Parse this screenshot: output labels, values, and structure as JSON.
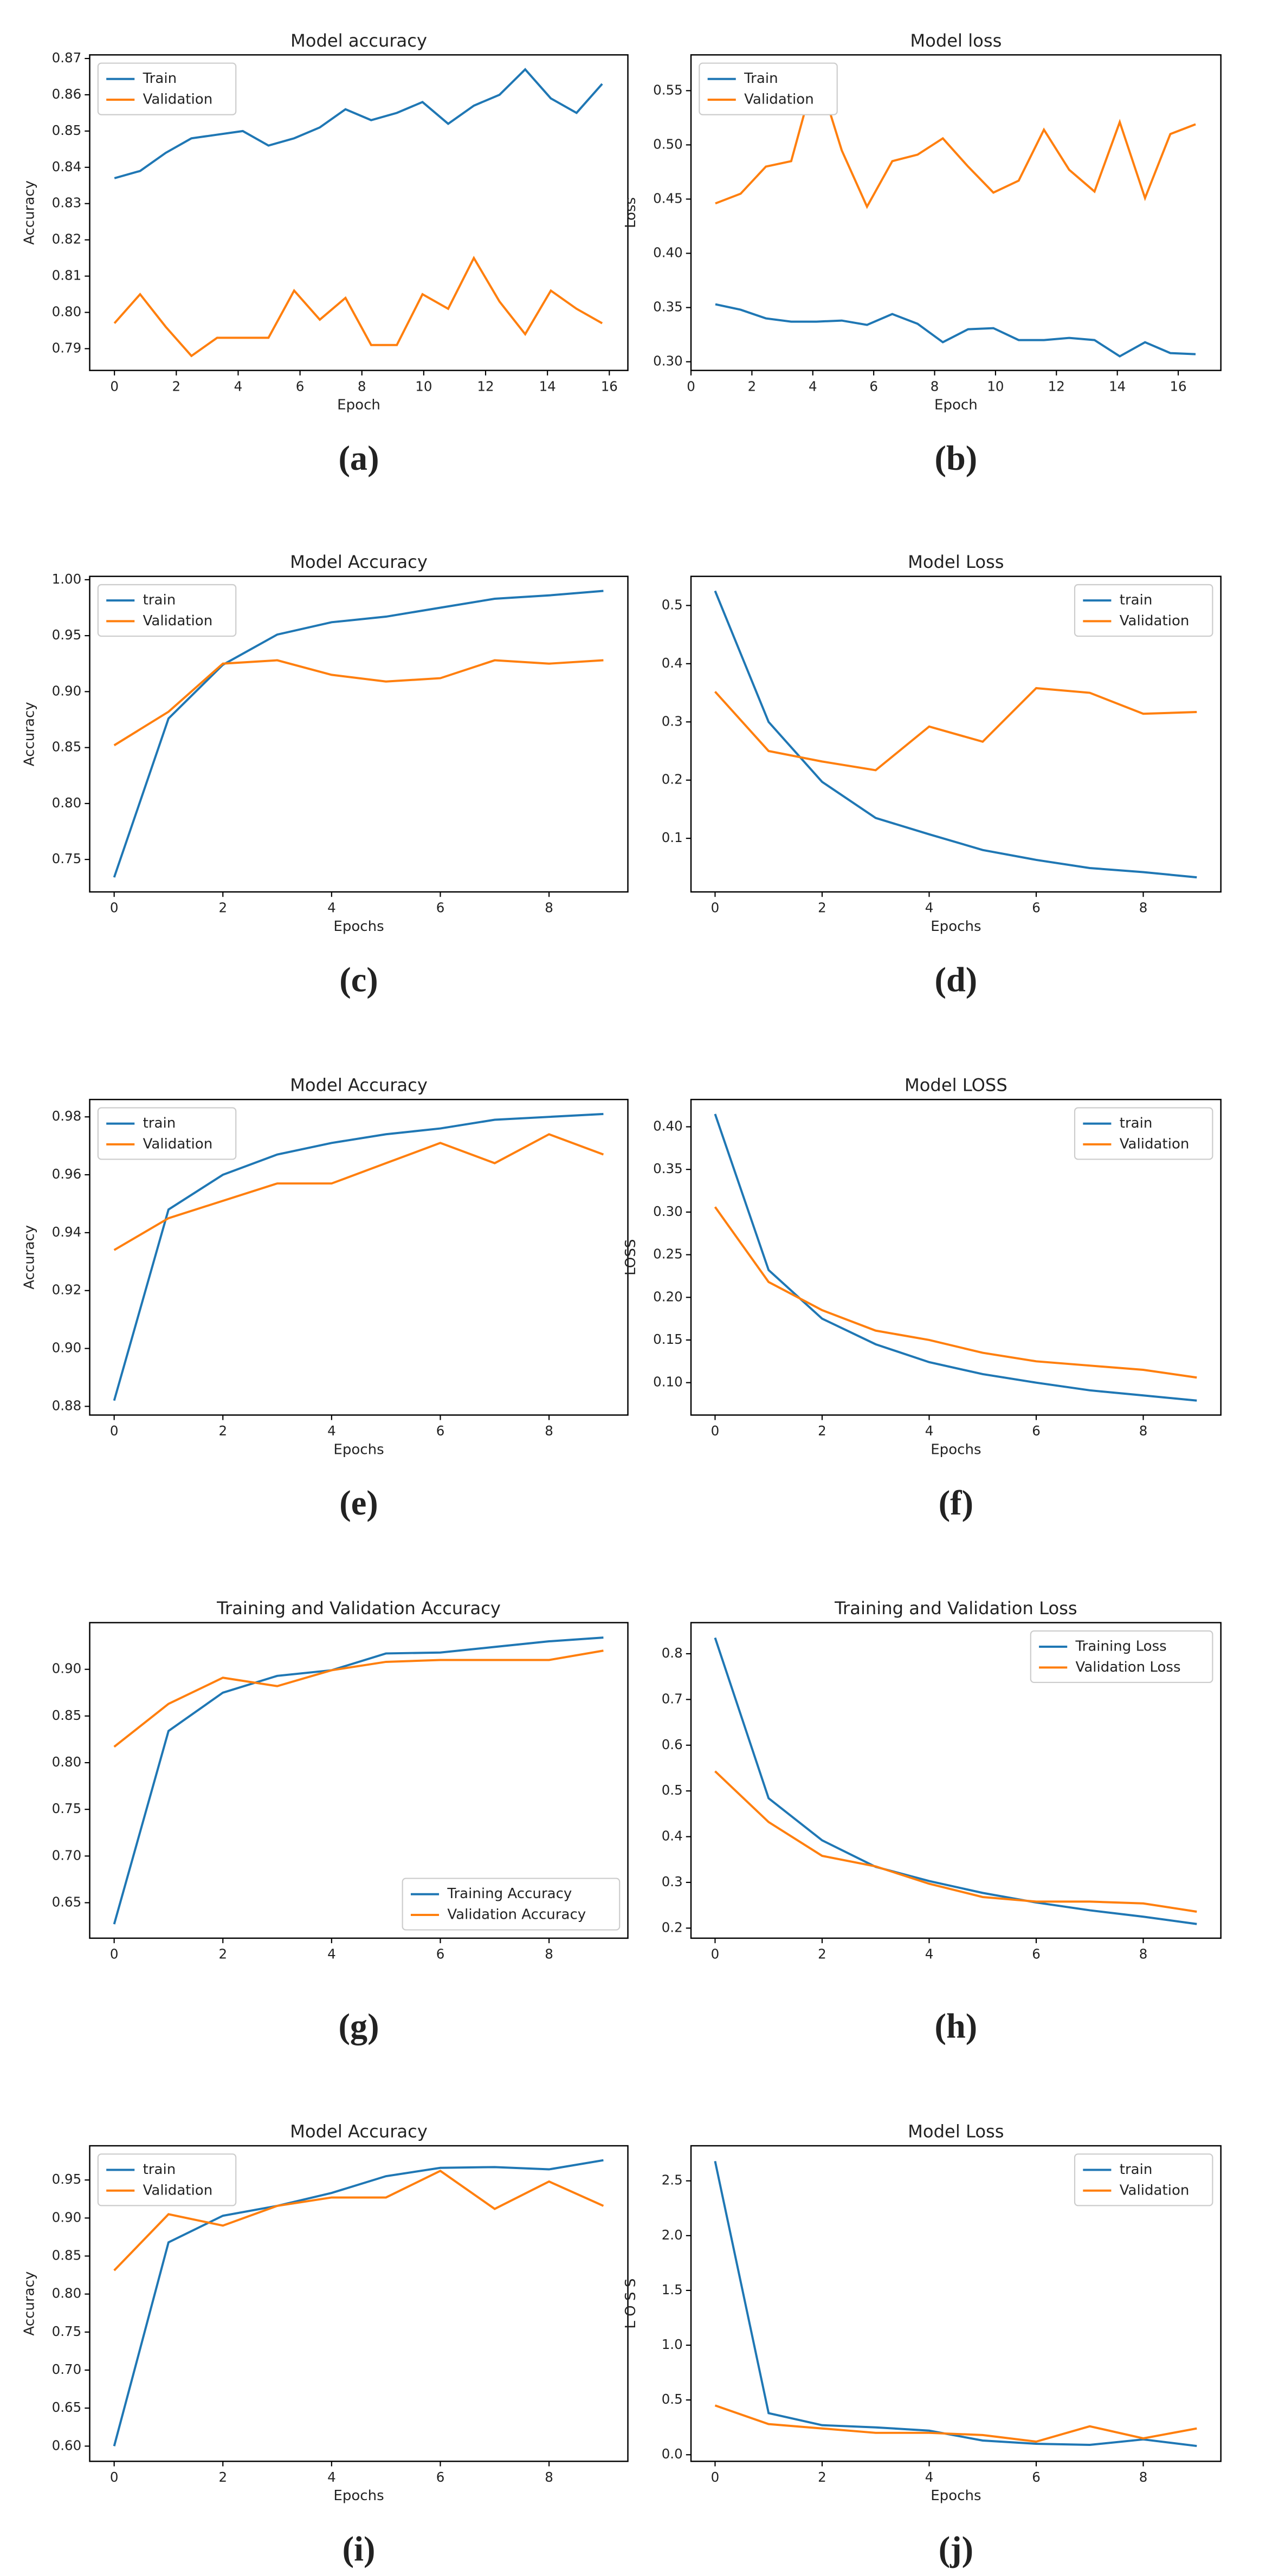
{
  "chart_data": [
    {
      "type": "line",
      "label": "(a)",
      "title": "Model accuracy",
      "xlabel": "Epoch",
      "ylabel": "Accuracy",
      "x": [
        0,
        0.83,
        1.66,
        2.49,
        3.32,
        4.15,
        4.98,
        5.81,
        6.64,
        7.47,
        8.3,
        9.13,
        9.96,
        10.79,
        11.62,
        12.45,
        13.28,
        14.11,
        14.94,
        15.77
      ],
      "series": [
        {
          "name": "Train",
          "color": "#1f77b4",
          "values": [
            0.837,
            0.839,
            0.844,
            0.848,
            0.849,
            0.85,
            0.846,
            0.848,
            0.851,
            0.856,
            0.853,
            0.855,
            0.858,
            0.852,
            0.857,
            0.86,
            0.867,
            0.859,
            0.855,
            0.863
          ]
        },
        {
          "name": "Validation",
          "color": "#ff7f0e",
          "values": [
            0.797,
            0.805,
            0.796,
            0.788,
            0.793,
            0.793,
            0.793,
            0.806,
            0.798,
            0.804,
            0.791,
            0.791,
            0.805,
            0.801,
            0.815,
            0.803,
            0.794,
            0.806,
            0.801,
            0.797
          ]
        }
      ],
      "xlim": [
        -0.8,
        16.6
      ],
      "xticks": [
        0,
        2,
        4,
        6,
        8,
        10,
        12,
        14,
        16
      ],
      "ylim": [
        0.784,
        0.871
      ],
      "yticks": [
        0.79,
        {
          "value": 0.8,
          "label": "0.80"
        },
        0.81,
        0.82,
        0.83,
        0.84,
        0.85,
        0.86,
        0.87
      ],
      "legend": "upper left"
    },
    {
      "type": "line",
      "label": "(b)",
      "title": "Model loss",
      "xlabel": "Epoch",
      "ylabel": "Loss",
      "x": [
        0.8,
        1.63,
        2.46,
        3.29,
        4.12,
        4.95,
        5.78,
        6.61,
        7.44,
        8.27,
        9.1,
        9.93,
        10.76,
        11.59,
        12.42,
        13.25,
        14.08,
        14.91,
        15.74,
        16.57
      ],
      "series": [
        {
          "name": "Train",
          "color": "#1f77b4",
          "values": [
            0.353,
            0.348,
            0.34,
            0.337,
            0.337,
            0.338,
            0.334,
            0.344,
            0.335,
            0.318,
            0.33,
            0.331,
            0.32,
            0.32,
            0.322,
            0.32,
            0.305,
            0.318,
            0.308,
            0.307
          ]
        },
        {
          "name": "Validation",
          "color": "#ff7f0e",
          "values": [
            0.446,
            0.455,
            0.48,
            0.485,
            0.57,
            0.495,
            0.443,
            0.485,
            0.491,
            0.506,
            0.48,
            0.456,
            0.467,
            0.514,
            0.477,
            0.457,
            0.521,
            0.451,
            0.51,
            0.519
          ]
        }
      ],
      "xlim": [
        0,
        17.4
      ],
      "xticks": [
        0,
        2,
        4,
        6,
        8,
        10,
        12,
        14,
        16
      ],
      "ylim": [
        0.292,
        0.583
      ],
      "yticks": [
        {
          "value": 0.3,
          "label": "0.30"
        },
        0.35,
        {
          "value": 0.4,
          "label": "0.40"
        },
        0.45,
        {
          "value": 0.5,
          "label": "0.50"
        },
        0.55
      ],
      "legend": "upper left"
    },
    {
      "type": "line",
      "label": "(c)",
      "title": "Model Accuracy",
      "xlabel": "Epochs",
      "ylabel": "Accuracy",
      "x": [
        0,
        1,
        2,
        3,
        4,
        5,
        6,
        7,
        8,
        9
      ],
      "series": [
        {
          "name": "train",
          "color": "#1f77b4",
          "values": [
            0.734,
            0.876,
            0.924,
            0.951,
            0.962,
            0.967,
            0.975,
            0.983,
            0.986,
            0.99
          ]
        },
        {
          "name": "Validation",
          "color": "#ff7f0e",
          "values": [
            0.852,
            0.882,
            0.925,
            0.928,
            0.915,
            0.909,
            0.912,
            0.928,
            0.925,
            0.928
          ]
        }
      ],
      "xlim": [
        -0.45,
        9.45
      ],
      "xticks": [
        0,
        2,
        4,
        6,
        8
      ],
      "ylim": [
        0.721,
        1.003
      ],
      "yticks": [
        0.75,
        {
          "value": 0.8,
          "label": "0.80"
        },
        0.85,
        {
          "value": 0.9,
          "label": "0.90"
        },
        0.95,
        {
          "value": 1,
          "label": "1.00"
        }
      ],
      "legend": "upper left"
    },
    {
      "type": "line",
      "label": "(d)",
      "title": "Model Loss",
      "xlabel": "Epochs",
      "x": [
        0,
        1,
        2,
        3,
        4,
        5,
        6,
        7,
        8,
        9
      ],
      "series": [
        {
          "name": "train",
          "color": "#1f77b4",
          "values": [
            0.525,
            0.3,
            0.197,
            0.135,
            0.107,
            0.08,
            0.063,
            0.049,
            0.042,
            0.033
          ]
        },
        {
          "name": "Validation",
          "color": "#ff7f0e",
          "values": [
            0.352,
            0.25,
            0.232,
            0.217,
            0.292,
            0.266,
            0.358,
            0.35,
            0.314,
            0.317
          ]
        }
      ],
      "xlim": [
        -0.45,
        9.45
      ],
      "xticks": [
        0,
        2,
        4,
        6,
        8
      ],
      "ylim": [
        0.008,
        0.55
      ],
      "yticks": [
        0.1,
        0.2,
        0.3,
        0.4,
        0.5
      ],
      "legend": "upper right"
    },
    {
      "type": "line",
      "label": "(e)",
      "title": "Model Accuracy",
      "xlabel": "Epochs",
      "ylabel": "Accuracy",
      "x": [
        0,
        1,
        2,
        3,
        4,
        5,
        6,
        7,
        8,
        9
      ],
      "series": [
        {
          "name": "train",
          "color": "#1f77b4",
          "values": [
            0.882,
            0.948,
            0.96,
            0.967,
            0.971,
            0.974,
            0.976,
            0.979,
            0.98,
            0.981
          ]
        },
        {
          "name": "Validation",
          "color": "#ff7f0e",
          "values": [
            0.934,
            0.945,
            0.951,
            0.957,
            0.957,
            0.964,
            0.971,
            0.964,
            0.974,
            0.967
          ]
        }
      ],
      "xlim": [
        -0.45,
        9.45
      ],
      "xticks": [
        0,
        2,
        4,
        6,
        8
      ],
      "ylim": [
        0.877,
        0.986
      ],
      "yticks": [
        0.88,
        {
          "value": 0.9,
          "label": "0.90"
        },
        0.92,
        0.94,
        0.96,
        0.98
      ],
      "legend": "upper left"
    },
    {
      "type": "line",
      "label": "(f)",
      "title": "Model LOSS",
      "xlabel": "Epochs",
      "ylabel": "LOSS",
      "x": [
        0,
        1,
        2,
        3,
        4,
        5,
        6,
        7,
        8,
        9
      ],
      "series": [
        {
          "name": "train",
          "color": "#1f77b4",
          "values": [
            0.415,
            0.232,
            0.175,
            0.145,
            0.124,
            0.11,
            0.1,
            0.091,
            0.085,
            0.079
          ]
        },
        {
          "name": "Validation",
          "color": "#ff7f0e",
          "values": [
            0.306,
            0.218,
            0.185,
            0.161,
            0.15,
            0.135,
            0.125,
            0.12,
            0.115,
            0.106
          ]
        }
      ],
      "xlim": [
        -0.45,
        9.45
      ],
      "xticks": [
        0,
        2,
        4,
        6,
        8
      ],
      "ylim": [
        0.062,
        0.432
      ],
      "yticks": [
        {
          "value": 0.1,
          "label": "0.10"
        },
        0.15,
        {
          "value": 0.2,
          "label": "0.20"
        },
        0.25,
        {
          "value": 0.3,
          "label": "0.30"
        },
        0.35,
        {
          "value": 0.4,
          "label": "0.40"
        }
      ],
      "legend": "upper right"
    },
    {
      "type": "line",
      "label": "(g)",
      "title": "Training and Validation Accuracy",
      "x": [
        0,
        1,
        2,
        3,
        4,
        5,
        6,
        7,
        8,
        9
      ],
      "series": [
        {
          "name": "Training Accuracy",
          "color": "#1f77b4",
          "values": [
            0.627,
            0.834,
            0.875,
            0.893,
            0.899,
            0.917,
            0.918,
            0.924,
            0.93,
            0.934
          ]
        },
        {
          "name": "Validation Accuracy",
          "color": "#ff7f0e",
          "values": [
            0.817,
            0.863,
            0.891,
            0.882,
            0.899,
            0.908,
            0.91,
            0.91,
            0.91,
            0.92
          ]
        }
      ],
      "xlim": [
        -0.45,
        9.45
      ],
      "xticks": [
        0,
        2,
        4,
        6,
        8
      ],
      "ylim": [
        0.612,
        0.95
      ],
      "yticks": [
        0.65,
        {
          "value": 0.7,
          "label": "0.70"
        },
        0.75,
        {
          "value": 0.8,
          "label": "0.80"
        },
        0.85,
        {
          "value": 0.9,
          "label": "0.90"
        }
      ],
      "legend": "lower right"
    },
    {
      "type": "line",
      "label": "(h)",
      "title": "Training and Validation Loss",
      "x": [
        0,
        1,
        2,
        3,
        4,
        5,
        6,
        7,
        8,
        9
      ],
      "series": [
        {
          "name": "Training Loss",
          "color": "#1f77b4",
          "values": [
            0.835,
            0.484,
            0.392,
            0.334,
            0.303,
            0.277,
            0.256,
            0.239,
            0.225,
            0.209
          ]
        },
        {
          "name": "Validation Loss",
          "color": "#ff7f0e",
          "values": [
            0.543,
            0.432,
            0.358,
            0.335,
            0.297,
            0.268,
            0.258,
            0.258,
            0.254,
            0.236
          ]
        }
      ],
      "xlim": [
        -0.45,
        9.45
      ],
      "xticks": [
        0,
        2,
        4,
        6,
        8
      ],
      "ylim": [
        0.178,
        0.868
      ],
      "yticks": [
        0.2,
        0.3,
        0.4,
        0.5,
        0.6,
        0.7,
        0.8
      ],
      "legend": "upper right"
    },
    {
      "type": "line",
      "label": "(i)",
      "title": "Model Accuracy",
      "xlabel": "Epochs",
      "ylabel": "Accuracy",
      "x": [
        0,
        1,
        2,
        3,
        4,
        5,
        6,
        7,
        8,
        9
      ],
      "series": [
        {
          "name": "train",
          "color": "#1f77b4",
          "values": [
            0.6,
            0.868,
            0.903,
            0.916,
            0.933,
            0.955,
            0.966,
            0.967,
            0.964,
            0.976
          ]
        },
        {
          "name": "Validation",
          "color": "#ff7f0e",
          "values": [
            0.831,
            0.905,
            0.89,
            0.916,
            0.927,
            0.927,
            0.962,
            0.912,
            0.948,
            0.916
          ]
        }
      ],
      "xlim": [
        -0.45,
        9.45
      ],
      "xticks": [
        0,
        2,
        4,
        6,
        8
      ],
      "ylim": [
        0.58,
        0.995
      ],
      "yticks": [
        {
          "value": 0.6,
          "label": "0.60"
        },
        0.65,
        {
          "value": 0.7,
          "label": "0.70"
        },
        0.75,
        {
          "value": 0.8,
          "label": "0.80"
        },
        0.85,
        {
          "value": 0.9,
          "label": "0.90"
        },
        0.95
      ],
      "legend": "upper left"
    },
    {
      "type": "line",
      "label": "(j)",
      "title": "Model   Loss",
      "xlabel": "Epochs",
      "ylabel": "L O S S",
      "x": [
        0,
        1,
        2,
        3,
        4,
        5,
        6,
        7,
        8,
        9
      ],
      "series": [
        {
          "name": "train",
          "color": "#1f77b4",
          "values": [
            2.68,
            0.38,
            0.27,
            0.25,
            0.22,
            0.13,
            0.1,
            0.09,
            0.14,
            0.08
          ]
        },
        {
          "name": "Validation",
          "color": "#ff7f0e",
          "values": [
            0.45,
            0.28,
            0.24,
            0.2,
            0.2,
            0.18,
            0.12,
            0.26,
            0.15,
            0.24
          ]
        }
      ],
      "xlim": [
        -0.45,
        9.45
      ],
      "xticks": [
        0,
        2,
        4,
        6,
        8
      ],
      "ylim": [
        -0.06,
        2.82
      ],
      "yticks": [
        {
          "value": 0,
          "label": "0.0"
        },
        0.5,
        {
          "value": 1,
          "label": "1.0"
        },
        1.5,
        {
          "value": 2,
          "label": "2.0"
        },
        2.5
      ],
      "legend": "upper right"
    }
  ]
}
